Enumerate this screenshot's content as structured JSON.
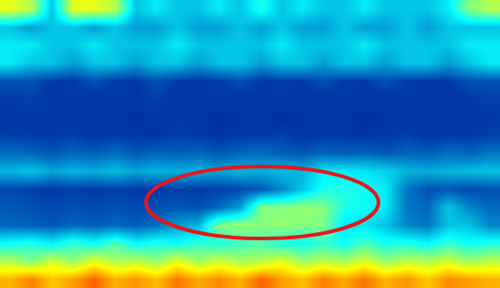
{
  "chart_data": {
    "type": "heatmap",
    "color": "Jet",
    "zlim": [
      0,
      10
    ],
    "xlim": [
      -0.5,
      23.5
    ],
    "ylim": [
      15.5,
      -0.5
    ],
    "tick_labels": false,
    "cells": [
      [
        6,
        5.5,
        3,
        6,
        6,
        5.5,
        3,
        3.5,
        3,
        3,
        3.5,
        3,
        4,
        3,
        3.5,
        3,
        3,
        3.5,
        3,
        3,
        3,
        3.5,
        5,
        5.5
      ],
      [
        3,
        2.5,
        3,
        3,
        2.5,
        3,
        2.5,
        2.5,
        3,
        2.5,
        2.5,
        3,
        2.5,
        3,
        2.5,
        2.5,
        3,
        2.5,
        2.5,
        3,
        2.5,
        3,
        3,
        3
      ],
      [
        3.5,
        3.5,
        3,
        3,
        3.5,
        3,
        3,
        3,
        3.5,
        3,
        3,
        3,
        3,
        3.5,
        3,
        3,
        3,
        3.5,
        3,
        3,
        3,
        3,
        3.5,
        3.5
      ],
      [
        3.5,
        3,
        3,
        2.5,
        3,
        3,
        2.5,
        3,
        3,
        2.5,
        3,
        3,
        2.5,
        3,
        3,
        2.5,
        3,
        3,
        2.5,
        3,
        3,
        2.5,
        3,
        3.5
      ],
      [
        1.5,
        1.5,
        1.2,
        1.2,
        1.5,
        1.2,
        1.2,
        1.5,
        1.2,
        1.2,
        1.2,
        1.5,
        1.2,
        1.2,
        1.2,
        1.5,
        1.2,
        1.2,
        1.5,
        1.2,
        1.2,
        1.2,
        1.5,
        1.5
      ],
      [
        1.2,
        1.3,
        1.1,
        1.2,
        1.1,
        1.2,
        1.1,
        1.3,
        1.1,
        1.1,
        1.2,
        1.1,
        1.1,
        1.2,
        1.1,
        1.1,
        1.2,
        1.1,
        1.1,
        1.2,
        1.1,
        1.1,
        1.2,
        1.3
      ],
      [
        1.1,
        1.2,
        1.1,
        1.1,
        1.2,
        1.1,
        1,
        1.1,
        1.2,
        1.1,
        1,
        1.1,
        1.1,
        1,
        1.1,
        1.2,
        1.1,
        1,
        1.1,
        1.1,
        1.2,
        1.1,
        1.1,
        1.2
      ],
      [
        1.3,
        1.2,
        1.2,
        1.3,
        1.1,
        1.2,
        1.2,
        1.1,
        1.3,
        1.2,
        1.1,
        1.2,
        1.2,
        1.3,
        1.1,
        1.2,
        1.2,
        1.1,
        1.2,
        1.3,
        1.1,
        1.2,
        1.2,
        1.3
      ],
      [
        1.9,
        1.8,
        1.6,
        1.8,
        1.7,
        1.9,
        1.6,
        1.8,
        1.7,
        1.8,
        1.6,
        1.8,
        1.9,
        1.7,
        1.6,
        1.8,
        1.7,
        1.8,
        1.6,
        1.8,
        1.7,
        1.9,
        1.8,
        2
      ],
      [
        2.8,
        3,
        2.6,
        2.8,
        2.7,
        2.9,
        2.6,
        2.8,
        2.7,
        2.8,
        2.6,
        2.8,
        2.7,
        2.9,
        2.8,
        3.5,
        3.5,
        3.4,
        3.2,
        2.8,
        2.7,
        2.8,
        2.9,
        3
      ],
      [
        1.4,
        1.3,
        1.2,
        1.3,
        1.2,
        1.3,
        1.2,
        1.2,
        1.3,
        1.2,
        1.3,
        1.4,
        1.6,
        2.2,
        3,
        4,
        4,
        3.8,
        3.5,
        2,
        1.5,
        1.6,
        1.4,
        1.5
      ],
      [
        1.6,
        1.5,
        1.4,
        1.5,
        1.4,
        1.5,
        1.4,
        1.5,
        1.6,
        1.5,
        1.8,
        2.5,
        5,
        5,
        5.2,
        5,
        4,
        3.8,
        3.5,
        2,
        1.8,
        3,
        2.2,
        1.8
      ],
      [
        1.8,
        1.7,
        1.6,
        1.8,
        1.7,
        1.8,
        1.7,
        1.9,
        2.5,
        2.8,
        5,
        5.2,
        5,
        5.2,
        5,
        5,
        3.5,
        3.4,
        3,
        2.2,
        2,
        3,
        3,
        2.2
      ],
      [
        3.8,
        4,
        3.6,
        4.2,
        3.8,
        4.5,
        3.7,
        4,
        3.8,
        4.2,
        4,
        4.3,
        4.5,
        4,
        3.8,
        4.2,
        3.8,
        4.4,
        3.9,
        4,
        3.7,
        4.2,
        3.8,
        4
      ],
      [
        5.5,
        5,
        5.8,
        5.2,
        6,
        5.4,
        5.6,
        5.2,
        6,
        5.3,
        5.8,
        5.4,
        5.5,
        6,
        5.3,
        5.6,
        5.4,
        5.9,
        5.2,
        5.6,
        5.5,
        5.8,
        5.3,
        5.6
      ],
      [
        7,
        7.5,
        6.8,
        7.2,
        7.8,
        7,
        7.3,
        6.9,
        7.6,
        7.1,
        7.4,
        7,
        7.8,
        7.2,
        6.9,
        7.5,
        7.1,
        7.6,
        7,
        7.3,
        6.8,
        7.4,
        7.2,
        7
      ]
    ]
  }
}
